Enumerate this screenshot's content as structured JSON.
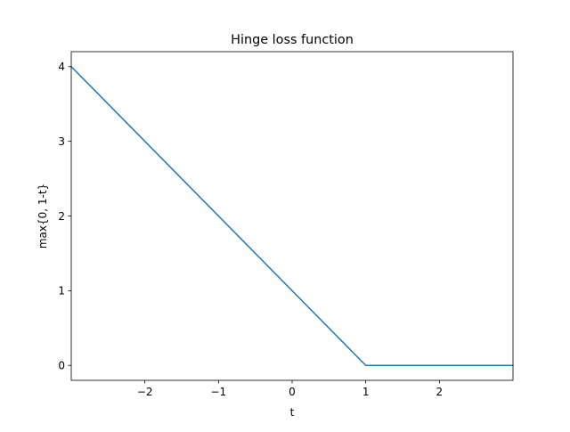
{
  "chart_data": {
    "type": "line",
    "title": "Hinge loss function",
    "xlabel": "t",
    "ylabel": "max{0, 1-t}",
    "xlim": [
      -3,
      3
    ],
    "ylim": [
      -0.2,
      4.2
    ],
    "xticks": [
      -2,
      -1,
      0,
      1,
      2
    ],
    "xtick_labels": [
      "−2",
      "−1",
      "0",
      "1",
      "2"
    ],
    "yticks": [
      0,
      1,
      2,
      3,
      4
    ],
    "ytick_labels": [
      "0",
      "1",
      "2",
      "3",
      "4"
    ],
    "grid": false,
    "series": [
      {
        "color": "#1f77b4",
        "x": [
          -3,
          1,
          3
        ],
        "y": [
          4,
          0,
          0
        ]
      }
    ]
  }
}
